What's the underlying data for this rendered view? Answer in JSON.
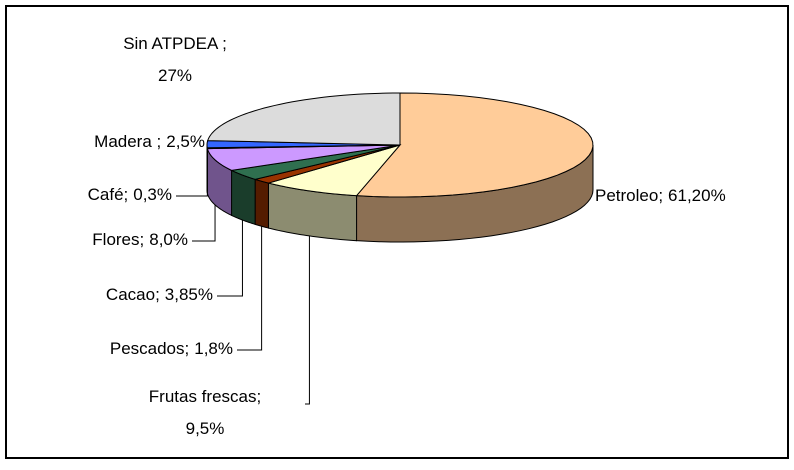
{
  "chart_data": {
    "type": "pie3d",
    "categories": [
      "Petroleo;",
      "Frutas frescas;",
      "Pescados;",
      "Cacao;",
      "Flores;",
      "Café;",
      "Madera ;",
      "Sin ATPDEA ;"
    ],
    "values": [
      61.2,
      9.5,
      1.8,
      3.85,
      8.0,
      0.3,
      2.5,
      27
    ],
    "value_labels": [
      "61,20%",
      "9,5%",
      "1,8%",
      "3,85%",
      "8,0%",
      "0,3%",
      "2,5%",
      "27%"
    ],
    "colors": [
      "#ffcc99",
      "#ffffcc",
      "#993300",
      "#2f6f4f",
      "#cc99ff",
      "#6666cc",
      "#3366ff",
      "#dcdcdc"
    ]
  }
}
